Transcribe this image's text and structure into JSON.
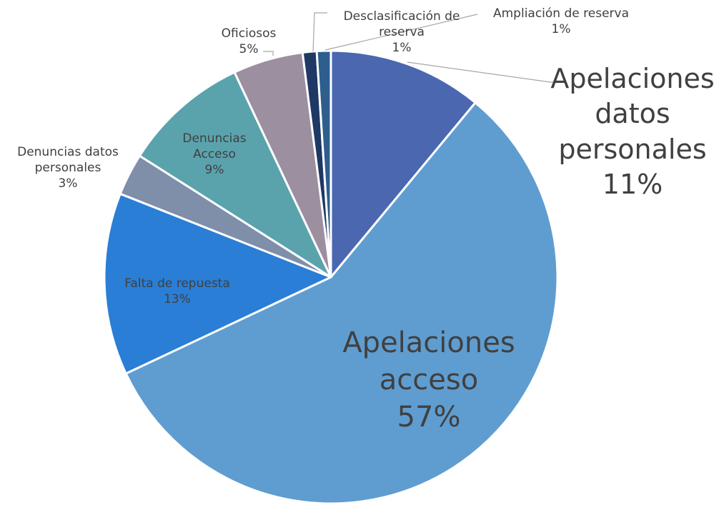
{
  "chart_data": {
    "type": "pie",
    "categories": [
      "Apelaciones datos personales",
      "Apelaciones acceso",
      "Falta de repuesta",
      "Denuncias datos personales",
      "Denuncias Acceso",
      "Oficiosos",
      "Desclasificación de reserva",
      "Ampliación de reserva"
    ],
    "values": [
      11,
      57,
      13,
      3,
      9,
      5,
      1,
      1
    ],
    "value_labels": [
      "11%",
      "57%",
      "13%",
      "3%",
      "9%",
      "5%",
      "1%",
      "1%"
    ],
    "colors": [
      "#4a67b0",
      "#5f9dd1",
      "#2a7ed6",
      "#7f8ea9",
      "#5aa3ad",
      "#9c8fa0",
      "#1f3864",
      "#2e5e8e"
    ]
  }
}
